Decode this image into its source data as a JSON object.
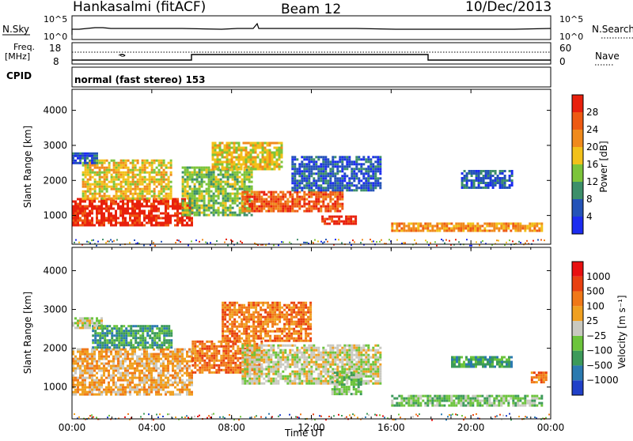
{
  "header": {
    "station": "Hankasalmi (fitACF)",
    "beam": "Beam 12",
    "date": "10/Dec/2013"
  },
  "top_panels": {
    "nsky_label": "N.Sky",
    "nsearch_label": "N.Search",
    "left_ticks": [
      "10^5",
      "10^0"
    ],
    "right_ticks": [
      "10^5",
      "10^0"
    ],
    "freq_label_1": "Freq.",
    "freq_label_2": "[MHz]",
    "freq_ticks": [
      "18",
      "8"
    ],
    "nave_ticks": [
      "60",
      "0"
    ],
    "nave_label": "Nave",
    "cpid_label": "CPID",
    "cpid_text": "normal (fast stereo) 153"
  },
  "x_axis": {
    "label": "Time UT",
    "ticks": [
      "00:00",
      "04:00",
      "08:00",
      "12:00",
      "16:00",
      "20:00",
      "00:00"
    ]
  },
  "chart_data": [
    {
      "type": "heatmap",
      "title": "Power",
      "ylabel": "Slant Range [km]",
      "ylim": [
        180,
        4600
      ],
      "yticks": [
        1000,
        2000,
        3000,
        4000
      ],
      "xlabel": "Time UT",
      "xlim_hours": [
        0,
        24
      ],
      "colorbar": {
        "label": "Power [dB]",
        "tick_labels": [
          "4",
          "8",
          "12",
          "16",
          "20",
          "24",
          "28"
        ],
        "colors": [
          "#1c2cf0",
          "#2453b8",
          "#3d8f6a",
          "#7cc43a",
          "#f2c11a",
          "#f08a1c",
          "#ee5a12",
          "#e8200c"
        ]
      },
      "regions": [
        {
          "t0": 0.0,
          "t1": 6.0,
          "r0": 750,
          "r1": 1500,
          "level": 7
        },
        {
          "t0": 0.5,
          "t1": 5.0,
          "r0": 1500,
          "r1": 2600,
          "level": 4
        },
        {
          "t0": 0.0,
          "t1": 1.2,
          "r0": 2500,
          "r1": 2800,
          "level": 1
        },
        {
          "t0": 5.5,
          "t1": 9.0,
          "r0": 1000,
          "r1": 2400,
          "level": 3
        },
        {
          "t0": 7.0,
          "t1": 10.5,
          "r0": 2300,
          "r1": 3100,
          "level": 4
        },
        {
          "t0": 8.5,
          "t1": 13.5,
          "r0": 1100,
          "r1": 1700,
          "level": 6
        },
        {
          "t0": 12.5,
          "t1": 14.2,
          "r0": 750,
          "r1": 1000,
          "level": 7
        },
        {
          "t0": 11.0,
          "t1": 15.5,
          "r0": 1700,
          "r1": 2700,
          "level": 1
        },
        {
          "t0": 16.0,
          "t1": 23.5,
          "r0": 550,
          "r1": 800,
          "level": 5
        },
        {
          "t0": 19.5,
          "t1": 22.0,
          "r0": 1800,
          "r1": 2300,
          "level": 1
        }
      ]
    },
    {
      "type": "heatmap",
      "title": "Velocity",
      "ylabel": "Slant Range [km]",
      "ylim": [
        180,
        4600
      ],
      "yticks": [
        1000,
        2000,
        3000,
        4000
      ],
      "xlabel": "Time UT",
      "xlim_hours": [
        0,
        24
      ],
      "colorbar": {
        "label": "Velocity [m s⁻¹]",
        "tick_labels": [
          "1000",
          "500",
          "100",
          "25",
          "−25",
          "−100",
          "−500",
          "−1000"
        ],
        "colors": [
          "#2040c8",
          "#2b7ab0",
          "#3c9a5a",
          "#6cc43c",
          "#c9c9c0",
          "#f0a020",
          "#f07818",
          "#e84010",
          "#e81010"
        ]
      },
      "regions": [
        {
          "t0": 0.0,
          "t1": 6.0,
          "r0": 800,
          "r1": 2000,
          "level": 5
        },
        {
          "t0": 1.0,
          "t1": 5.0,
          "r0": 2000,
          "r1": 2600,
          "level": 2
        },
        {
          "t0": 0.0,
          "t1": 1.5,
          "r0": 2500,
          "r1": 2800,
          "level": 4
        },
        {
          "t0": 6.0,
          "t1": 9.5,
          "r0": 1400,
          "r1": 2200,
          "level": 6
        },
        {
          "t0": 7.5,
          "t1": 12.0,
          "r0": 2200,
          "r1": 3200,
          "level": 6
        },
        {
          "t0": 8.5,
          "t1": 15.5,
          "r0": 1100,
          "r1": 2100,
          "level": 4
        },
        {
          "t0": 13.0,
          "t1": 14.5,
          "r0": 800,
          "r1": 1400,
          "level": 3
        },
        {
          "t0": 16.0,
          "t1": 23.5,
          "r0": 550,
          "r1": 800,
          "level": 3
        },
        {
          "t0": 19.0,
          "t1": 22.0,
          "r0": 1500,
          "r1": 1800,
          "level": 2
        },
        {
          "t0": 23.0,
          "t1": 23.8,
          "r0": 1150,
          "r1": 1400,
          "level": 6
        }
      ]
    }
  ]
}
